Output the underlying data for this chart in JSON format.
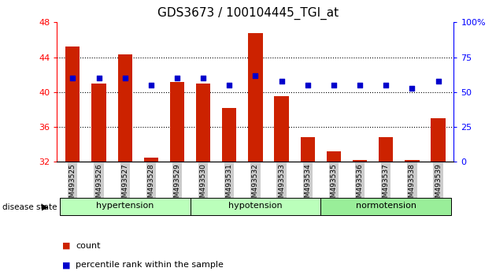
{
  "title": "GDS3673 / 100104445_TGI_at",
  "samples": [
    "GSM493525",
    "GSM493526",
    "GSM493527",
    "GSM493528",
    "GSM493529",
    "GSM493530",
    "GSM493531",
    "GSM493532",
    "GSM493533",
    "GSM493534",
    "GSM493535",
    "GSM493536",
    "GSM493537",
    "GSM493538",
    "GSM493539"
  ],
  "bar_values": [
    45.2,
    41.0,
    44.3,
    32.5,
    41.2,
    41.0,
    38.2,
    46.8,
    39.5,
    34.8,
    33.2,
    32.2,
    34.8,
    32.2,
    37.0
  ],
  "dot_percentile": [
    60,
    60,
    60,
    55,
    60,
    60,
    55,
    62,
    58,
    55,
    55,
    55,
    55,
    53,
    58
  ],
  "bar_color": "#cc2200",
  "dot_color": "#0000cc",
  "ylim_left": [
    32,
    48
  ],
  "ylim_right": [
    0,
    100
  ],
  "yticks_left": [
    32,
    36,
    40,
    44,
    48
  ],
  "yticks_right": [
    0,
    25,
    50,
    75,
    100
  ],
  "groups": [
    {
      "label": "hypertension",
      "start": 0,
      "end": 5,
      "color": "#bbffbb"
    },
    {
      "label": "hypotension",
      "start": 5,
      "end": 10,
      "color": "#bbffbb"
    },
    {
      "label": "normotension",
      "start": 10,
      "end": 15,
      "color": "#99ee99"
    }
  ],
  "legend_count_label": "count",
  "legend_pct_label": "percentile rank within the sample",
  "disease_state_label": "disease state",
  "tick_label_bg": "#cccccc",
  "grid_color": "#000000",
  "grid_lines": [
    44,
    40,
    36
  ]
}
